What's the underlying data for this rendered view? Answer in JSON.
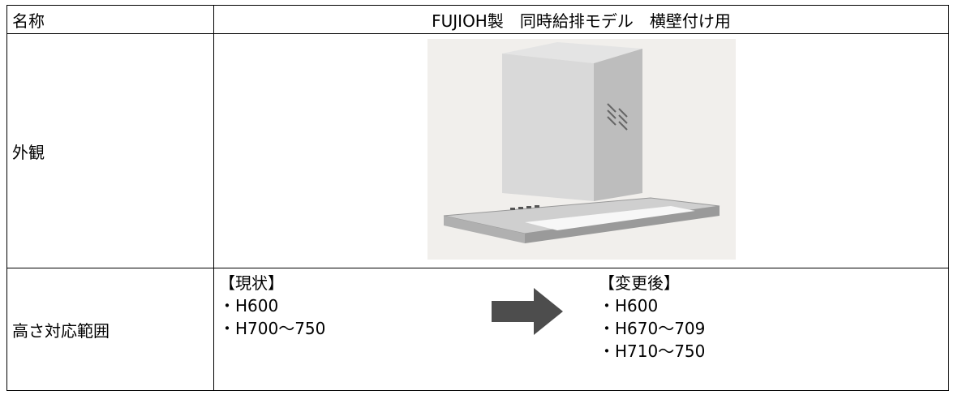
{
  "table": {
    "header": [
      "名称",
      "FUJIOH製　同時給排モデル　横壁付け用"
    ],
    "appearance": {
      "label": "外観"
    },
    "height": {
      "label": "高さ対応範囲",
      "current": {
        "title": "【現状】",
        "items": [
          "・H600",
          "・H700～750"
        ]
      },
      "changed": {
        "title": "【変更後】",
        "items": [
          "・H600",
          "・H670～709",
          "・H710～750"
        ]
      }
    }
  }
}
